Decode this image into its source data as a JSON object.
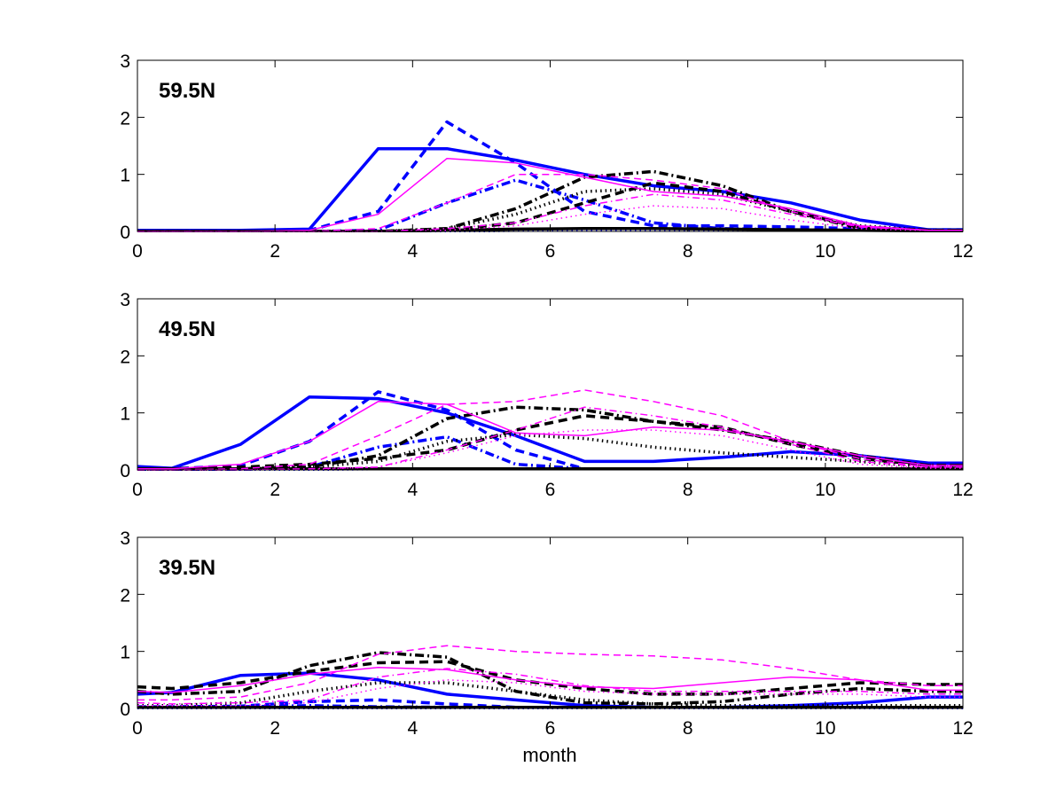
{
  "figure": {
    "xlabel": "month",
    "xticks": [
      0,
      2,
      4,
      6,
      8,
      10,
      12
    ],
    "yticks": [
      0,
      1,
      2,
      3
    ]
  },
  "chart_data": [
    {
      "type": "line",
      "title": "59.5N",
      "xlabel": "",
      "ylabel": "",
      "xlim": [
        0,
        12
      ],
      "ylim": [
        0,
        3
      ],
      "x": [
        0,
        0.5,
        1.5,
        2.5,
        3.5,
        4.5,
        5.5,
        6.5,
        7.5,
        8.5,
        9.5,
        10.5,
        11.5,
        12
      ],
      "series": [
        {
          "name": "blue-solid",
          "color": "#0000ff",
          "style": "solid",
          "weight": "thick",
          "values": [
            0.02,
            0.02,
            0.02,
            0.04,
            1.45,
            1.45,
            1.25,
            1.0,
            0.8,
            0.7,
            0.5,
            0.2,
            0.03,
            0.03
          ]
        },
        {
          "name": "blue-dashed",
          "color": "#0000ff",
          "style": "dashed",
          "weight": "thick",
          "values": [
            0,
            0,
            0,
            0.02,
            0.35,
            1.92,
            1.2,
            0.35,
            0.1,
            0.1,
            0.08,
            0.05,
            0.03,
            0.03
          ]
        },
        {
          "name": "blue-dashdot",
          "color": "#0000ff",
          "style": "dashdot",
          "weight": "thick",
          "values": [
            0,
            0,
            0,
            0,
            0.02,
            0.5,
            0.9,
            0.55,
            0.15,
            0.05,
            0.03,
            0.02,
            0.02,
            0.02
          ]
        },
        {
          "name": "blue-dotted",
          "color": "#0000ff",
          "style": "dotted",
          "weight": "thick",
          "values": [
            0,
            0,
            0,
            0,
            0,
            0,
            0.02,
            0.02,
            0.02,
            0.02,
            0.02,
            0.02,
            0.02,
            0.02
          ]
        },
        {
          "name": "black-solid",
          "color": "#000000",
          "style": "solid",
          "weight": "thick",
          "values": [
            0,
            0,
            0,
            0,
            0,
            0.02,
            0.04,
            0.05,
            0.05,
            0.04,
            0.03,
            0.02,
            0.01,
            0.01
          ]
        },
        {
          "name": "black-dashed",
          "color": "#000000",
          "style": "dashed",
          "weight": "thick",
          "values": [
            0,
            0,
            0,
            0,
            0,
            0.02,
            0.15,
            0.5,
            0.85,
            0.7,
            0.35,
            0.08,
            0.02,
            0.02
          ]
        },
        {
          "name": "black-dashdot",
          "color": "#000000",
          "style": "dashdot",
          "weight": "thick",
          "values": [
            0,
            0,
            0,
            0,
            0,
            0.05,
            0.4,
            0.95,
            1.05,
            0.8,
            0.35,
            0.05,
            0.02,
            0.02
          ]
        },
        {
          "name": "black-dotted",
          "color": "#000000",
          "style": "dotted",
          "weight": "thick",
          "values": [
            0,
            0,
            0,
            0,
            0,
            0.05,
            0.3,
            0.7,
            0.75,
            0.65,
            0.35,
            0.1,
            0.02,
            0.02
          ]
        },
        {
          "name": "magenta-solid",
          "color": "#ff00ff",
          "style": "solid",
          "weight": "thin",
          "values": [
            0,
            0,
            0,
            0.02,
            0.3,
            1.28,
            1.2,
            0.95,
            0.7,
            0.62,
            0.4,
            0.1,
            0.02,
            0.02
          ]
        },
        {
          "name": "magenta-dashed",
          "color": "#ff00ff",
          "style": "dashed",
          "weight": "thin",
          "values": [
            0,
            0,
            0,
            0,
            0.05,
            0.5,
            1.0,
            1.0,
            0.9,
            0.75,
            0.35,
            0.08,
            0.02,
            0.02
          ]
        },
        {
          "name": "magenta-dashdot",
          "color": "#ff00ff",
          "style": "dashdot",
          "weight": "thin",
          "values": [
            0,
            0,
            0,
            0,
            0,
            0.05,
            0.15,
            0.45,
            0.65,
            0.55,
            0.3,
            0.08,
            0.02,
            0.02
          ]
        },
        {
          "name": "magenta-dotted",
          "color": "#ff00ff",
          "style": "dotted",
          "weight": "thin",
          "values": [
            0,
            0,
            0,
            0,
            0,
            0.02,
            0.1,
            0.3,
            0.45,
            0.4,
            0.2,
            0.05,
            0.01,
            0.01
          ]
        }
      ]
    },
    {
      "type": "line",
      "title": "49.5N",
      "xlabel": "",
      "ylabel": "",
      "xlim": [
        0,
        12
      ],
      "ylim": [
        0,
        3
      ],
      "x": [
        0,
        0.5,
        1.5,
        2.5,
        3.5,
        4.5,
        5.5,
        6.5,
        7.5,
        8.5,
        9.5,
        10.5,
        11.5,
        12
      ],
      "series": [
        {
          "name": "blue-solid",
          "color": "#0000ff",
          "style": "solid",
          "weight": "thick",
          "values": [
            0.06,
            0.03,
            0.45,
            1.28,
            1.25,
            1.0,
            0.6,
            0.15,
            0.15,
            0.22,
            0.32,
            0.25,
            0.12,
            0.12
          ]
        },
        {
          "name": "blue-dashed",
          "color": "#0000ff",
          "style": "dashed",
          "weight": "thick",
          "values": [
            0.03,
            0.02,
            0.08,
            0.5,
            1.37,
            1.05,
            0.35,
            0.02,
            0.02,
            0.02,
            0.02,
            0.02,
            0.02,
            0.02
          ]
        },
        {
          "name": "blue-dashdot",
          "color": "#0000ff",
          "style": "dashdot",
          "weight": "thick",
          "values": [
            0,
            0,
            0.01,
            0.05,
            0.4,
            0.58,
            0.1,
            0.02,
            0.02,
            0.02,
            0.02,
            0.02,
            0.02,
            0.02
          ]
        },
        {
          "name": "blue-dotted",
          "color": "#0000ff",
          "style": "dotted",
          "weight": "thick",
          "values": [
            0,
            0,
            0,
            0.01,
            0.02,
            0.02,
            0.02,
            0.02,
            0.02,
            0.02,
            0.02,
            0.02,
            0.02,
            0.02
          ]
        },
        {
          "name": "black-solid",
          "color": "#000000",
          "style": "solid",
          "weight": "thick",
          "values": [
            0.02,
            0.02,
            0.02,
            0.02,
            0.02,
            0.02,
            0.02,
            0.02,
            0.02,
            0.02,
            0.02,
            0.02,
            0.02,
            0.02
          ]
        },
        {
          "name": "black-dashed",
          "color": "#000000",
          "style": "dashed",
          "weight": "thick",
          "values": [
            0.02,
            0.02,
            0.05,
            0.1,
            0.2,
            0.35,
            0.7,
            0.95,
            0.85,
            0.75,
            0.45,
            0.2,
            0.08,
            0.08
          ]
        },
        {
          "name": "black-dashdot",
          "color": "#000000",
          "style": "dashdot",
          "weight": "thick",
          "values": [
            0.02,
            0.02,
            0.02,
            0.05,
            0.25,
            0.9,
            1.1,
            1.05,
            0.85,
            0.7,
            0.5,
            0.25,
            0.08,
            0.08
          ]
        },
        {
          "name": "black-dotted",
          "color": "#000000",
          "style": "dotted",
          "weight": "thick",
          "values": [
            0,
            0,
            0.02,
            0.05,
            0.15,
            0.5,
            0.62,
            0.55,
            0.4,
            0.3,
            0.22,
            0.15,
            0.05,
            0.05
          ]
        },
        {
          "name": "magenta-solid",
          "color": "#ff00ff",
          "style": "solid",
          "weight": "thin",
          "values": [
            0.02,
            0.02,
            0.1,
            0.5,
            1.2,
            1.15,
            0.65,
            0.6,
            0.75,
            0.7,
            0.5,
            0.25,
            0.08,
            0.08
          ]
        },
        {
          "name": "magenta-dashed",
          "color": "#ff00ff",
          "style": "dashed",
          "weight": "thin",
          "values": [
            0,
            0,
            0.02,
            0.1,
            0.6,
            1.15,
            1.2,
            1.4,
            1.2,
            0.95,
            0.5,
            0.2,
            0.05,
            0.05
          ]
        },
        {
          "name": "magenta-dashdot",
          "color": "#ff00ff",
          "style": "dashdot",
          "weight": "thin",
          "values": [
            0,
            0,
            0,
            0.02,
            0.05,
            0.35,
            0.7,
            1.1,
            0.95,
            0.75,
            0.45,
            0.15,
            0.05,
            0.05
          ]
        },
        {
          "name": "magenta-dotted",
          "color": "#ff00ff",
          "style": "dotted",
          "weight": "thin",
          "values": [
            0,
            0,
            0,
            0.01,
            0.05,
            0.3,
            0.6,
            0.7,
            0.7,
            0.6,
            0.35,
            0.1,
            0.03,
            0.03
          ]
        }
      ]
    },
    {
      "type": "line",
      "title": "39.5N",
      "xlabel": "month",
      "ylabel": "",
      "xlim": [
        0,
        12
      ],
      "ylim": [
        0,
        3
      ],
      "x": [
        0,
        0.5,
        1.5,
        2.5,
        3.5,
        4.5,
        5.5,
        6.5,
        7.5,
        8.5,
        9.5,
        10.5,
        11.5,
        12
      ],
      "series": [
        {
          "name": "blue-solid",
          "color": "#0000ff",
          "style": "solid",
          "weight": "thick",
          "values": [
            0.25,
            0.28,
            0.58,
            0.62,
            0.5,
            0.25,
            0.15,
            0.05,
            0.02,
            0.02,
            0.05,
            0.1,
            0.2,
            0.2
          ]
        },
        {
          "name": "blue-dashed",
          "color": "#0000ff",
          "style": "dashed",
          "weight": "thick",
          "values": [
            0.03,
            0.03,
            0.04,
            0.12,
            0.15,
            0.08,
            0.02,
            0.02,
            0.02,
            0.02,
            0.02,
            0.02,
            0.02,
            0.02
          ]
        },
        {
          "name": "blue-dashdot",
          "color": "#0000ff",
          "style": "dashdot",
          "weight": "thick",
          "values": [
            0.02,
            0.02,
            0.03,
            0.05,
            0.03,
            0.02,
            0.02,
            0.02,
            0.02,
            0.02,
            0.02,
            0.02,
            0.02,
            0.02
          ]
        },
        {
          "name": "blue-dotted",
          "color": "#0000ff",
          "style": "dotted",
          "weight": "thick",
          "values": [
            0.01,
            0.01,
            0.01,
            0.01,
            0.01,
            0.01,
            0.01,
            0.01,
            0.01,
            0.01,
            0.01,
            0.01,
            0.01,
            0.01
          ]
        },
        {
          "name": "black-solid",
          "color": "#000000",
          "style": "solid",
          "weight": "thick",
          "values": [
            0.02,
            0.02,
            0.02,
            0.02,
            0.02,
            0.02,
            0.02,
            0.02,
            0.02,
            0.02,
            0.02,
            0.02,
            0.02,
            0.02
          ]
        },
        {
          "name": "black-dashed",
          "color": "#000000",
          "style": "dashed",
          "weight": "thick",
          "values": [
            0.38,
            0.35,
            0.45,
            0.65,
            0.8,
            0.82,
            0.5,
            0.35,
            0.25,
            0.25,
            0.35,
            0.45,
            0.42,
            0.42
          ]
        },
        {
          "name": "black-dashdot",
          "color": "#000000",
          "style": "dashdot",
          "weight": "thick",
          "values": [
            0.3,
            0.25,
            0.3,
            0.75,
            0.98,
            0.9,
            0.3,
            0.1,
            0.08,
            0.12,
            0.25,
            0.35,
            0.3,
            0.3
          ]
        },
        {
          "name": "black-dotted",
          "color": "#000000",
          "style": "dotted",
          "weight": "thick",
          "values": [
            0.05,
            0.05,
            0.1,
            0.3,
            0.45,
            0.45,
            0.3,
            0.15,
            0.08,
            0.05,
            0.05,
            0.05,
            0.05,
            0.05
          ]
        },
        {
          "name": "magenta-solid",
          "color": "#ff00ff",
          "style": "solid",
          "weight": "thin",
          "values": [
            0.3,
            0.28,
            0.4,
            0.6,
            0.72,
            0.68,
            0.5,
            0.38,
            0.35,
            0.45,
            0.55,
            0.5,
            0.32,
            0.32
          ]
        },
        {
          "name": "magenta-dashed",
          "color": "#ff00ff",
          "style": "dashed",
          "weight": "thin",
          "values": [
            0.15,
            0.15,
            0.2,
            0.45,
            0.95,
            1.1,
            1.0,
            0.95,
            0.92,
            0.85,
            0.7,
            0.5,
            0.4,
            0.4
          ]
        },
        {
          "name": "magenta-dashdot",
          "color": "#ff00ff",
          "style": "dashdot",
          "weight": "thin",
          "values": [
            0.1,
            0.08,
            0.1,
            0.15,
            0.55,
            0.7,
            0.6,
            0.4,
            0.3,
            0.3,
            0.3,
            0.3,
            0.25,
            0.25
          ]
        },
        {
          "name": "magenta-dotted",
          "color": "#ff00ff",
          "style": "dotted",
          "weight": "thin",
          "values": [
            0.05,
            0.05,
            0.05,
            0.1,
            0.35,
            0.5,
            0.45,
            0.3,
            0.25,
            0.25,
            0.25,
            0.25,
            0.2,
            0.2
          ]
        }
      ]
    }
  ]
}
